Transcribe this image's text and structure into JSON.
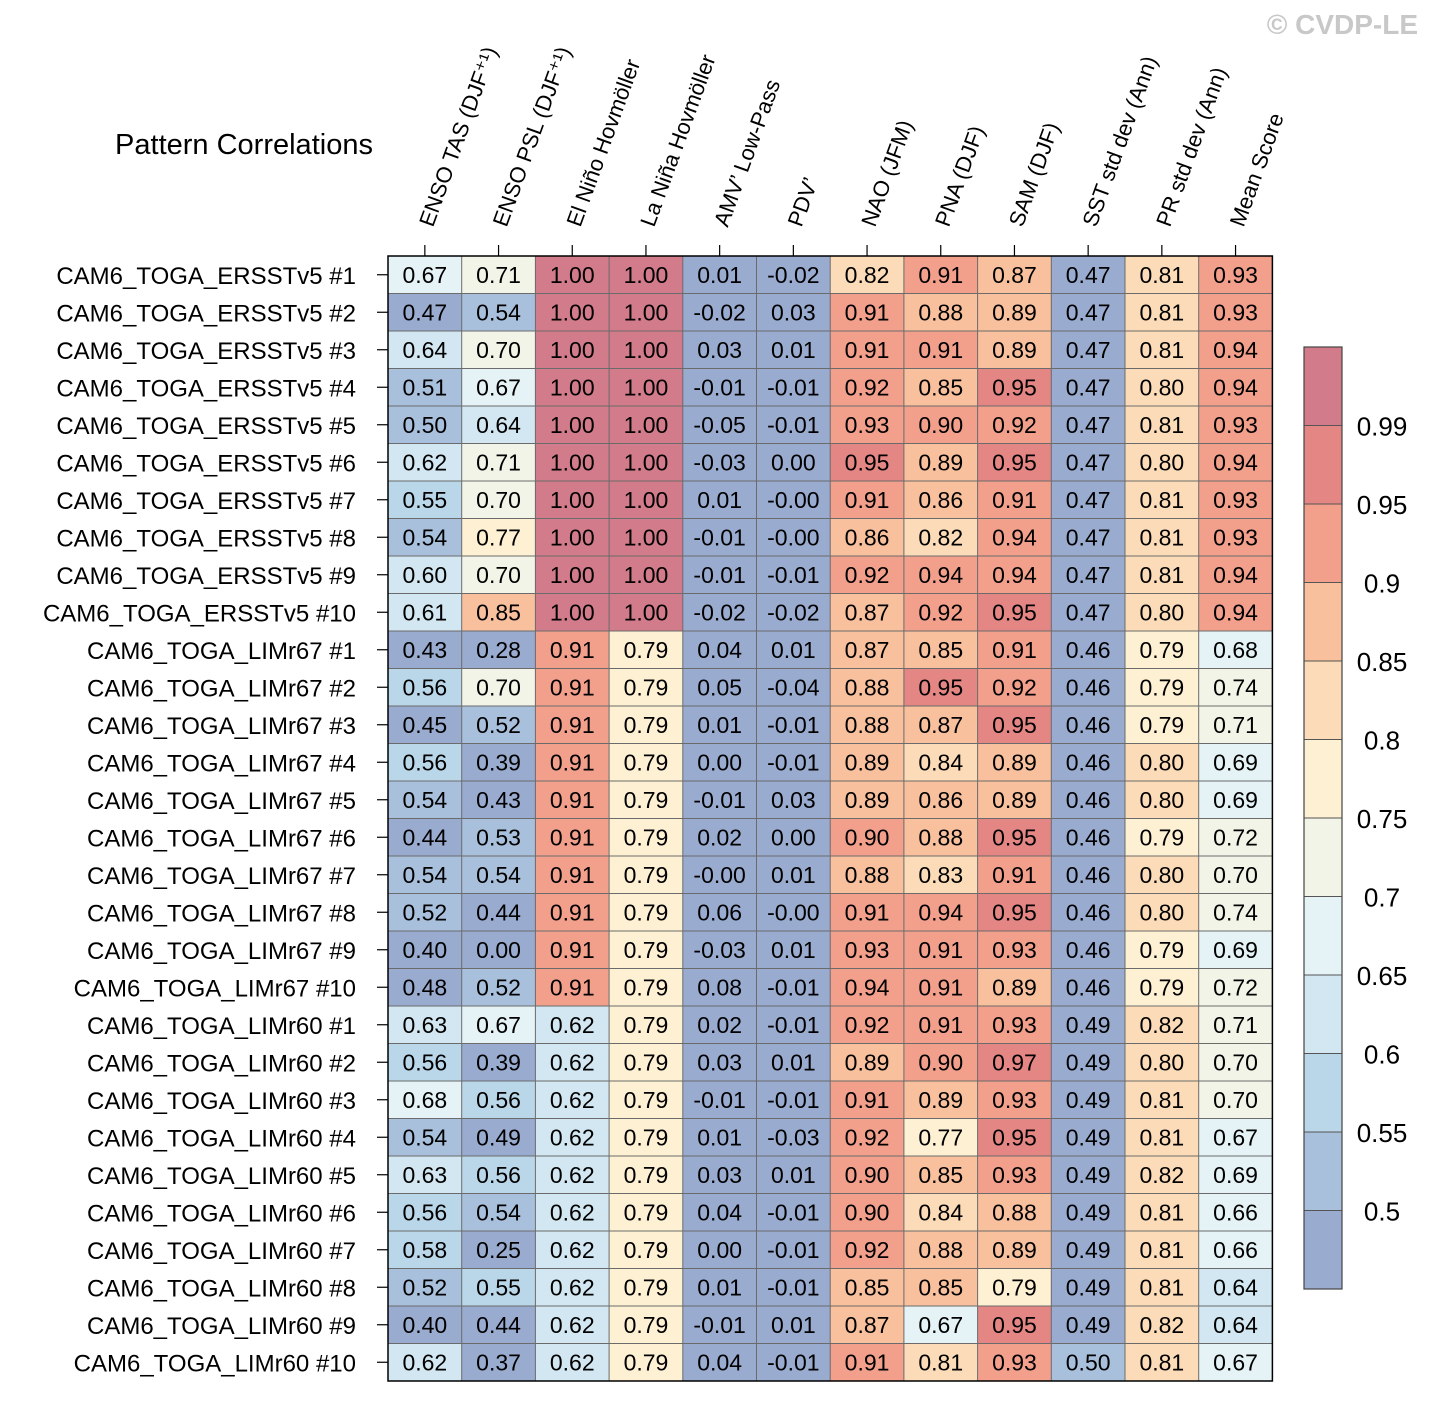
{
  "watermark": "© CVDP-LE",
  "chart_data": {
    "type": "heatmap",
    "title": "Pattern Correlations",
    "columns": [
      "ENSO TAS (DJF⁺¹)",
      "ENSO PSL (DJF⁺¹)",
      "El Niño Hovmöller",
      "La Niña Hovmöller",
      "AMV’ Low-Pass",
      "PDV’",
      "NAO (JFM)",
      "PNA (DJF)",
      "SAM (DJF)",
      "SST std dev (Ann)",
      "PR std dev (Ann)",
      "Mean Score"
    ],
    "rows": [
      "CAM6_TOGA_ERSSTv5 #1",
      "CAM6_TOGA_ERSSTv5 #2",
      "CAM6_TOGA_ERSSTv5 #3",
      "CAM6_TOGA_ERSSTv5 #4",
      "CAM6_TOGA_ERSSTv5 #5",
      "CAM6_TOGA_ERSSTv5 #6",
      "CAM6_TOGA_ERSSTv5 #7",
      "CAM6_TOGA_ERSSTv5 #8",
      "CAM6_TOGA_ERSSTv5 #9",
      "CAM6_TOGA_ERSSTv5 #10",
      "CAM6_TOGA_LIMr67 #1",
      "CAM6_TOGA_LIMr67 #2",
      "CAM6_TOGA_LIMr67 #3",
      "CAM6_TOGA_LIMr67 #4",
      "CAM6_TOGA_LIMr67 #5",
      "CAM6_TOGA_LIMr67 #6",
      "CAM6_TOGA_LIMr67 #7",
      "CAM6_TOGA_LIMr67 #8",
      "CAM6_TOGA_LIMr67 #9",
      "CAM6_TOGA_LIMr67 #10",
      "CAM6_TOGA_LIMr60 #1",
      "CAM6_TOGA_LIMr60 #2",
      "CAM6_TOGA_LIMr60 #3",
      "CAM6_TOGA_LIMr60 #4",
      "CAM6_TOGA_LIMr60 #5",
      "CAM6_TOGA_LIMr60 #6",
      "CAM6_TOGA_LIMr60 #7",
      "CAM6_TOGA_LIMr60 #8",
      "CAM6_TOGA_LIMr60 #9",
      "CAM6_TOGA_LIMr60 #10"
    ],
    "values": [
      [
        "0.67",
        "0.71",
        "1.00",
        "1.00",
        "0.01",
        "-0.02",
        "0.82",
        "0.91",
        "0.87",
        "0.47",
        "0.81",
        "0.93"
      ],
      [
        "0.47",
        "0.54",
        "1.00",
        "1.00",
        "-0.02",
        "0.03",
        "0.91",
        "0.88",
        "0.89",
        "0.47",
        "0.81",
        "0.93"
      ],
      [
        "0.64",
        "0.70",
        "1.00",
        "1.00",
        "0.03",
        "0.01",
        "0.91",
        "0.91",
        "0.89",
        "0.47",
        "0.81",
        "0.94"
      ],
      [
        "0.51",
        "0.67",
        "1.00",
        "1.00",
        "-0.01",
        "-0.01",
        "0.92",
        "0.85",
        "0.95",
        "0.47",
        "0.80",
        "0.94"
      ],
      [
        "0.50",
        "0.64",
        "1.00",
        "1.00",
        "-0.05",
        "-0.01",
        "0.93",
        "0.90",
        "0.92",
        "0.47",
        "0.81",
        "0.93"
      ],
      [
        "0.62",
        "0.71",
        "1.00",
        "1.00",
        "-0.03",
        "0.00",
        "0.95",
        "0.89",
        "0.95",
        "0.47",
        "0.80",
        "0.94"
      ],
      [
        "0.55",
        "0.70",
        "1.00",
        "1.00",
        "0.01",
        "-0.00",
        "0.91",
        "0.86",
        "0.91",
        "0.47",
        "0.81",
        "0.93"
      ],
      [
        "0.54",
        "0.77",
        "1.00",
        "1.00",
        "-0.01",
        "-0.00",
        "0.86",
        "0.82",
        "0.94",
        "0.47",
        "0.81",
        "0.93"
      ],
      [
        "0.60",
        "0.70",
        "1.00",
        "1.00",
        "-0.01",
        "-0.01",
        "0.92",
        "0.94",
        "0.94",
        "0.47",
        "0.81",
        "0.94"
      ],
      [
        "0.61",
        "0.85",
        "1.00",
        "1.00",
        "-0.02",
        "-0.02",
        "0.87",
        "0.92",
        "0.95",
        "0.47",
        "0.80",
        "0.94"
      ],
      [
        "0.43",
        "0.28",
        "0.91",
        "0.79",
        "0.04",
        "0.01",
        "0.87",
        "0.85",
        "0.91",
        "0.46",
        "0.79",
        "0.68"
      ],
      [
        "0.56",
        "0.70",
        "0.91",
        "0.79",
        "0.05",
        "-0.04",
        "0.88",
        "0.95",
        "0.92",
        "0.46",
        "0.79",
        "0.74"
      ],
      [
        "0.45",
        "0.52",
        "0.91",
        "0.79",
        "0.01",
        "-0.01",
        "0.88",
        "0.87",
        "0.95",
        "0.46",
        "0.79",
        "0.71"
      ],
      [
        "0.56",
        "0.39",
        "0.91",
        "0.79",
        "0.00",
        "-0.01",
        "0.89",
        "0.84",
        "0.89",
        "0.46",
        "0.80",
        "0.69"
      ],
      [
        "0.54",
        "0.43",
        "0.91",
        "0.79",
        "-0.01",
        "0.03",
        "0.89",
        "0.86",
        "0.89",
        "0.46",
        "0.80",
        "0.69"
      ],
      [
        "0.44",
        "0.53",
        "0.91",
        "0.79",
        "0.02",
        "0.00",
        "0.90",
        "0.88",
        "0.95",
        "0.46",
        "0.79",
        "0.72"
      ],
      [
        "0.54",
        "0.54",
        "0.91",
        "0.79",
        "-0.00",
        "0.01",
        "0.88",
        "0.83",
        "0.91",
        "0.46",
        "0.80",
        "0.70"
      ],
      [
        "0.52",
        "0.44",
        "0.91",
        "0.79",
        "0.06",
        "-0.00",
        "0.91",
        "0.94",
        "0.95",
        "0.46",
        "0.80",
        "0.74"
      ],
      [
        "0.40",
        "0.00",
        "0.91",
        "0.79",
        "-0.03",
        "0.01",
        "0.93",
        "0.91",
        "0.93",
        "0.46",
        "0.79",
        "0.69"
      ],
      [
        "0.48",
        "0.52",
        "0.91",
        "0.79",
        "0.08",
        "-0.01",
        "0.94",
        "0.91",
        "0.89",
        "0.46",
        "0.79",
        "0.72"
      ],
      [
        "0.63",
        "0.67",
        "0.62",
        "0.79",
        "0.02",
        "-0.01",
        "0.92",
        "0.91",
        "0.93",
        "0.49",
        "0.82",
        "0.71"
      ],
      [
        "0.56",
        "0.39",
        "0.62",
        "0.79",
        "0.03",
        "0.01",
        "0.89",
        "0.90",
        "0.97",
        "0.49",
        "0.80",
        "0.70"
      ],
      [
        "0.68",
        "0.56",
        "0.62",
        "0.79",
        "-0.01",
        "-0.01",
        "0.91",
        "0.89",
        "0.93",
        "0.49",
        "0.81",
        "0.70"
      ],
      [
        "0.54",
        "0.49",
        "0.62",
        "0.79",
        "0.01",
        "-0.03",
        "0.92",
        "0.77",
        "0.95",
        "0.49",
        "0.81",
        "0.67"
      ],
      [
        "0.63",
        "0.56",
        "0.62",
        "0.79",
        "0.03",
        "0.01",
        "0.90",
        "0.85",
        "0.93",
        "0.49",
        "0.82",
        "0.69"
      ],
      [
        "0.56",
        "0.54",
        "0.62",
        "0.79",
        "0.04",
        "-0.01",
        "0.90",
        "0.84",
        "0.88",
        "0.49",
        "0.81",
        "0.66"
      ],
      [
        "0.58",
        "0.25",
        "0.62",
        "0.79",
        "0.00",
        "-0.01",
        "0.92",
        "0.88",
        "0.89",
        "0.49",
        "0.81",
        "0.66"
      ],
      [
        "0.52",
        "0.55",
        "0.62",
        "0.79",
        "0.01",
        "-0.01",
        "0.85",
        "0.85",
        "0.79",
        "0.49",
        "0.81",
        "0.64"
      ],
      [
        "0.40",
        "0.44",
        "0.62",
        "0.79",
        "-0.01",
        "0.01",
        "0.87",
        "0.67",
        "0.95",
        "0.49",
        "0.82",
        "0.64"
      ],
      [
        "0.62",
        "0.37",
        "0.62",
        "0.79",
        "0.04",
        "-0.01",
        "0.91",
        "0.81",
        "0.93",
        "0.50",
        "0.81",
        "0.67"
      ]
    ],
    "colorbar": {
      "levels": [
        0.5,
        0.55,
        0.6,
        0.65,
        0.7,
        0.75,
        0.8,
        0.85,
        0.9,
        0.95,
        0.99
      ],
      "labels": [
        "0.5",
        "0.55",
        "0.6",
        "0.65",
        "0.7",
        "0.75",
        "0.8",
        "0.85",
        "0.9",
        "0.95",
        "0.99"
      ],
      "colors": [
        "#9aabd0",
        "#a9c0dd",
        "#bad7e9",
        "#d2e7f1",
        "#e5f3f6",
        "#f3f4e8",
        "#fdf0d3",
        "#fcdcb8",
        "#f8c09c",
        "#f2a08c",
        "#e38684",
        "#d27b8a"
      ]
    }
  }
}
